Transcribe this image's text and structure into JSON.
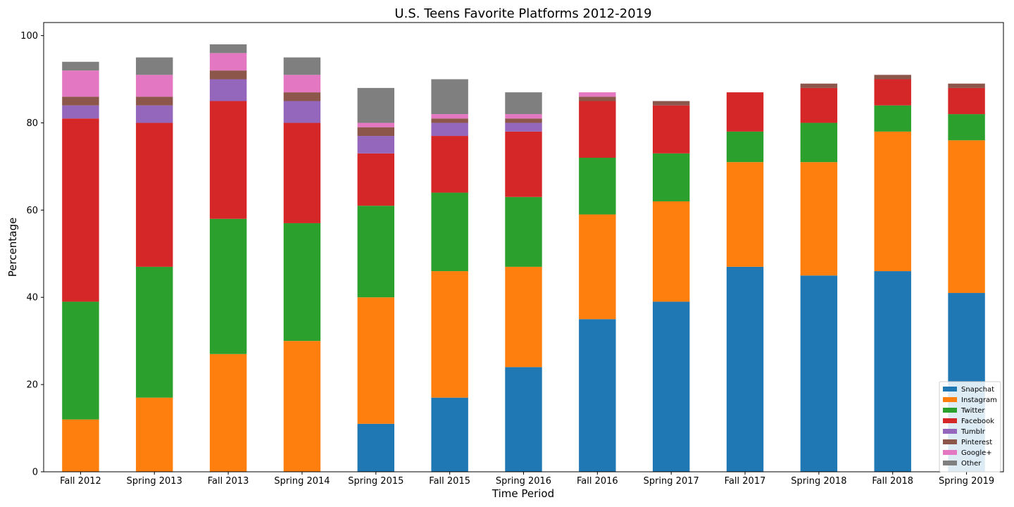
{
  "chart_data": {
    "type": "bar",
    "stacked": true,
    "title": "U.S. Teens Favorite Platforms 2012-2019",
    "xlabel": "Time Period",
    "ylabel": "Percentage",
    "ylim": [
      0,
      103
    ],
    "yticks": [
      "0",
      "20",
      "40",
      "60",
      "80",
      "100"
    ],
    "grid": false,
    "legend_position": "bottom-right",
    "categories": [
      "Fall 2012",
      "Spring 2013",
      "Fall 2013",
      "Spring 2014",
      "Spring 2015",
      "Fall 2015",
      "Spring 2016",
      "Fall 2016",
      "Spring 2017",
      "Fall 2017",
      "Spring 2018",
      "Fall 2018",
      "Spring 2019"
    ],
    "series": [
      {
        "name": "Snapchat",
        "color": "#1f77b4",
        "values": [
          0,
          0,
          0,
          0,
          11,
          17,
          24,
          35,
          39,
          47,
          45,
          46,
          41
        ]
      },
      {
        "name": "Instagram",
        "color": "#ff7f0e",
        "values": [
          12,
          17,
          27,
          30,
          29,
          29,
          23,
          24,
          23,
          24,
          26,
          32,
          35
        ]
      },
      {
        "name": "Twitter",
        "color": "#2ca02c",
        "values": [
          27,
          30,
          31,
          27,
          21,
          18,
          16,
          13,
          11,
          7,
          9,
          6,
          6
        ]
      },
      {
        "name": "Facebook",
        "color": "#d62728",
        "values": [
          42,
          33,
          27,
          23,
          12,
          13,
          15,
          13,
          11,
          9,
          8,
          6,
          6
        ]
      },
      {
        "name": "Tumblr",
        "color": "#9467bd",
        "values": [
          3,
          4,
          5,
          5,
          4,
          3,
          2,
          0,
          0,
          0,
          0,
          0,
          0
        ]
      },
      {
        "name": "Pinterest",
        "color": "#8c564b",
        "values": [
          2,
          2,
          2,
          2,
          2,
          1,
          1,
          1,
          1,
          0,
          1,
          1,
          1
        ]
      },
      {
        "name": "Google+",
        "color": "#e377c2",
        "values": [
          6,
          5,
          4,
          4,
          1,
          1,
          1,
          1,
          0,
          0,
          0,
          0,
          0
        ]
      },
      {
        "name": "Other",
        "color": "#7f7f7f",
        "values": [
          2,
          4,
          2,
          4,
          8,
          8,
          5,
          0,
          0,
          0,
          0,
          0,
          0
        ]
      }
    ]
  }
}
